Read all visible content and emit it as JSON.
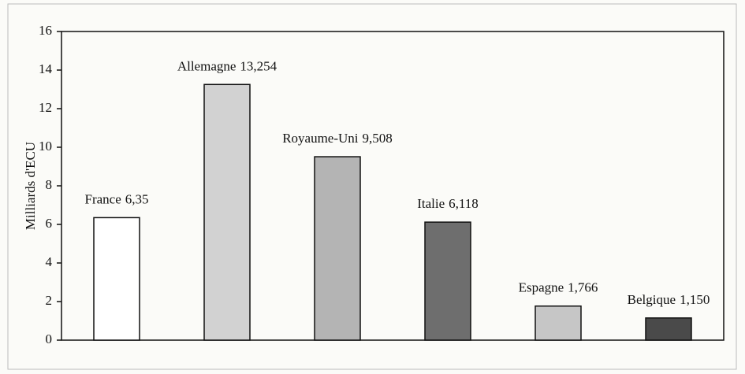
{
  "chart_data": {
    "type": "bar",
    "y_label": "Milliards d'ECU",
    "categories": [
      "France",
      "Allemagne",
      "Royaume-Uni",
      "Italie",
      "Espagne",
      "Belgique"
    ],
    "values": [
      6.35,
      13.254,
      9.508,
      6.118,
      1.766,
      1.15
    ],
    "value_labels": [
      "6,35",
      "13,254",
      "9,508",
      "6,118",
      "1,766",
      "1,150"
    ],
    "colors": [
      "#ffffff",
      "#d2d2d2",
      "#b4b4b4",
      "#6e6e6e",
      "#c6c6c6",
      "#4a4a4a"
    ],
    "ylim": [
      0,
      16
    ],
    "yticks": [
      0,
      2,
      4,
      6,
      8,
      10,
      12,
      14,
      16
    ],
    "grid": false
  }
}
